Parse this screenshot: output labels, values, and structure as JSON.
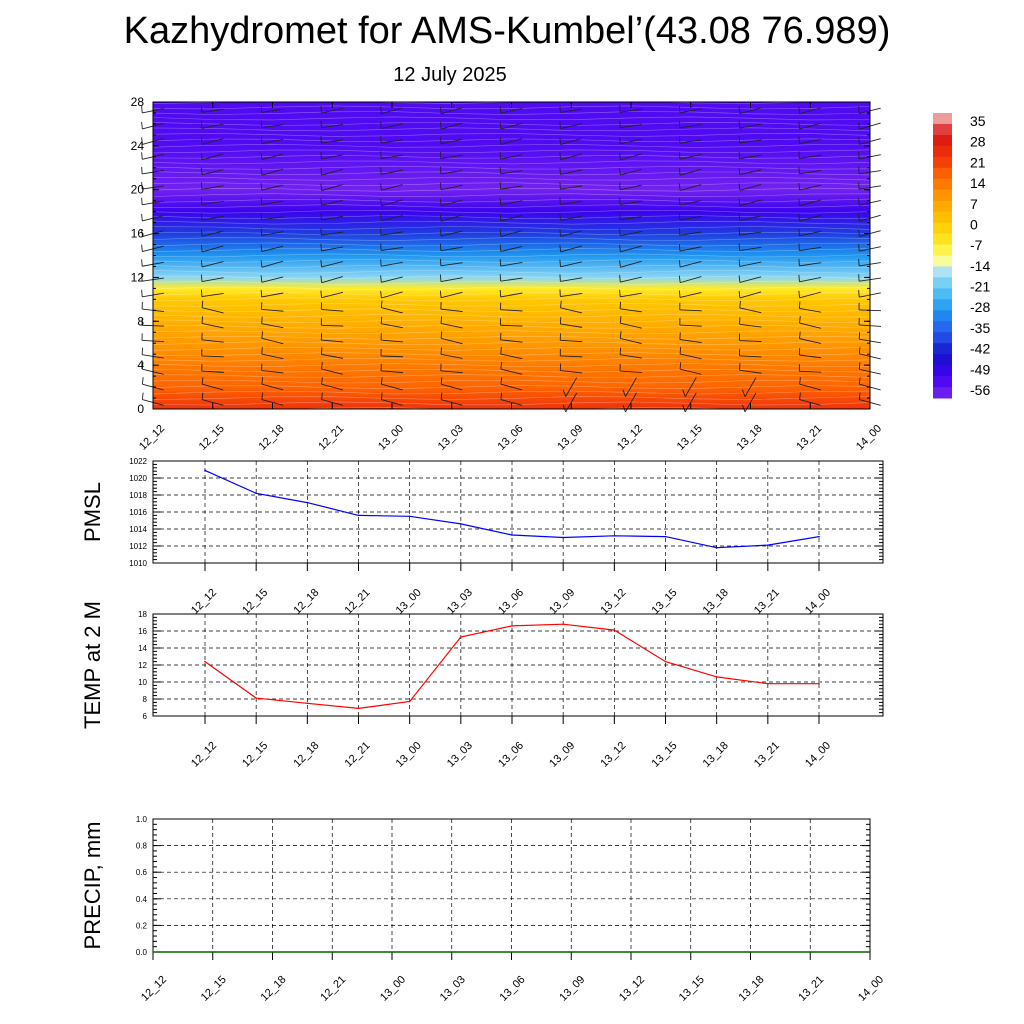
{
  "title": "Kazhydromet for AMS-Kumbel’(43.08 76.989)",
  "subtitle": "12 July 2025",
  "chart_data": [
    {
      "type": "heatmap",
      "name": "vertical-profile",
      "x_ticks": [
        "12_12",
        "12_15",
        "12_18",
        "12_21",
        "13_00",
        "13_03",
        "13_06",
        "13_09",
        "13_12",
        "13_15",
        "13_18",
        "13_21",
        "14_00"
      ],
      "y_ticks": [
        0,
        4,
        8,
        12,
        16,
        20,
        24,
        28
      ],
      "ylim": [
        0,
        28
      ],
      "colorbar": {
        "labels": [
          "35",
          "28",
          "21",
          "14",
          "7",
          "0",
          "-7",
          "-14",
          "-21",
          "-28",
          "-35",
          "-42",
          "-49",
          "-56"
        ],
        "range": [
          -56,
          35
        ]
      },
      "wind_barbs": true,
      "value_profile": [
        {
          "y": 0,
          "value": 21
        },
        {
          "y": 2,
          "value": 15
        },
        {
          "y": 4,
          "value": 12
        },
        {
          "y": 6,
          "value": 8
        },
        {
          "y": 8,
          "value": 4
        },
        {
          "y": 10,
          "value": 0
        },
        {
          "y": 11,
          "value": -7
        },
        {
          "y": 12,
          "value": -18
        },
        {
          "y": 14,
          "value": -28
        },
        {
          "y": 16,
          "value": -38
        },
        {
          "y": 18,
          "value": -48
        },
        {
          "y": 20,
          "value": -55
        },
        {
          "y": 22,
          "value": -53
        },
        {
          "y": 24,
          "value": -51
        },
        {
          "y": 26,
          "value": -51
        },
        {
          "y": 28,
          "value": -51
        }
      ]
    },
    {
      "type": "line",
      "name": "pmsl",
      "ylabel": "PMSL",
      "ylim": [
        1010,
        1022
      ],
      "y_ticks": [
        "1010",
        "1012",
        "1014",
        "1016",
        "1018",
        "1020",
        "1022"
      ],
      "x_ticks": [
        "12_12",
        "12_15",
        "12_18",
        "12_21",
        "13_00",
        "13_03",
        "13_06",
        "13_09",
        "13_12",
        "13_15",
        "13_18",
        "13_21",
        "14_00"
      ],
      "color": "#0000ff",
      "values": [
        1020.9,
        1018.2,
        1017.1,
        1015.6,
        1015.5,
        1014.6,
        1013.3,
        1013.0,
        1013.2,
        1013.1,
        1011.8,
        1012.1,
        1013.1
      ]
    },
    {
      "type": "line",
      "name": "temp2m",
      "ylabel": "TEMP at 2 M",
      "ylim": [
        6,
        18
      ],
      "y_ticks": [
        "6",
        "8",
        "10",
        "12",
        "14",
        "16",
        "18"
      ],
      "x_ticks": [
        "12_12",
        "12_15",
        "12_18",
        "12_21",
        "13_00",
        "13_03",
        "13_06",
        "13_09",
        "13_12",
        "13_15",
        "13_18",
        "13_21",
        "14_00"
      ],
      "color": "#ff0000",
      "values": [
        12.4,
        8.1,
        7.5,
        6.9,
        7.7,
        15.3,
        16.6,
        16.8,
        16.1,
        12.4,
        10.6,
        9.8,
        9.8
      ]
    },
    {
      "type": "line",
      "name": "precip",
      "ylabel": "PRECIP, mm",
      "ylim": [
        0.0,
        1.0
      ],
      "y_ticks": [
        "0.0",
        "0.2",
        "0.4",
        "0.6",
        "0.8",
        "1.0"
      ],
      "x_ticks": [
        "12_12",
        "12_15",
        "12_18",
        "12_21",
        "13_00",
        "13_03",
        "13_06",
        "13_09",
        "13_12",
        "13_15",
        "13_18",
        "13_21",
        "14_00"
      ],
      "color": "#006400",
      "values": [
        0,
        0,
        0,
        0,
        0,
        0,
        0,
        0,
        0,
        0,
        0,
        0,
        0
      ]
    }
  ]
}
